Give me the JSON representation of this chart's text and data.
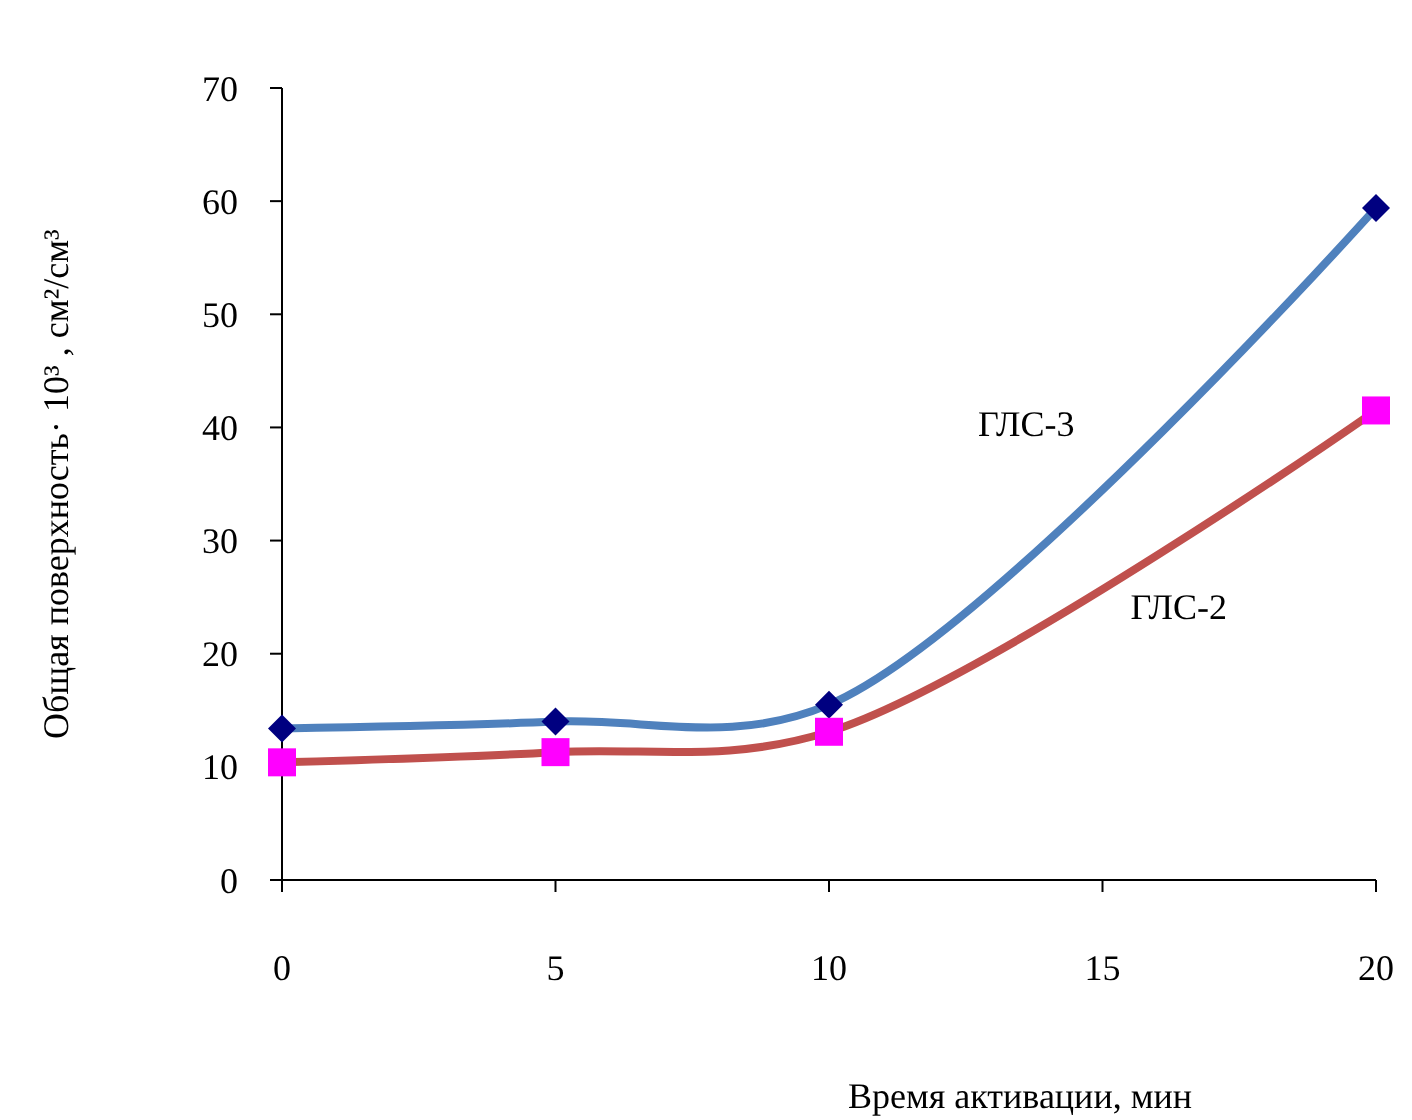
{
  "chart_data": {
    "type": "line",
    "xlabel": "Время активации, мин",
    "ylabel": "Общая поверхность· 10³ , см²/см³",
    "x": [
      0,
      5,
      10,
      20
    ],
    "xlim": [
      0,
      20
    ],
    "xticks": [
      0,
      5,
      10,
      15,
      20
    ],
    "ylim": [
      0,
      70
    ],
    "yticks": [
      0,
      10,
      20,
      30,
      40,
      50,
      60,
      70
    ],
    "grid": false,
    "series": [
      {
        "name": "ГЛС-3",
        "color": "#4f81bd",
        "colors": [
          "#000080",
          "#000080",
          "#000080",
          "#000080"
        ],
        "marker": "diamond",
        "values": [
          13.4,
          14.0,
          15.5,
          59.4
        ]
      },
      {
        "name": "ГЛС-2",
        "color": "#c0504d",
        "colors": [
          "#ff00ff",
          "#ff00ff",
          "#ff00ff",
          "#ff00ff"
        ],
        "marker": "square",
        "values": [
          10.4,
          11.3,
          13.1,
          41.5
        ]
      }
    ]
  }
}
